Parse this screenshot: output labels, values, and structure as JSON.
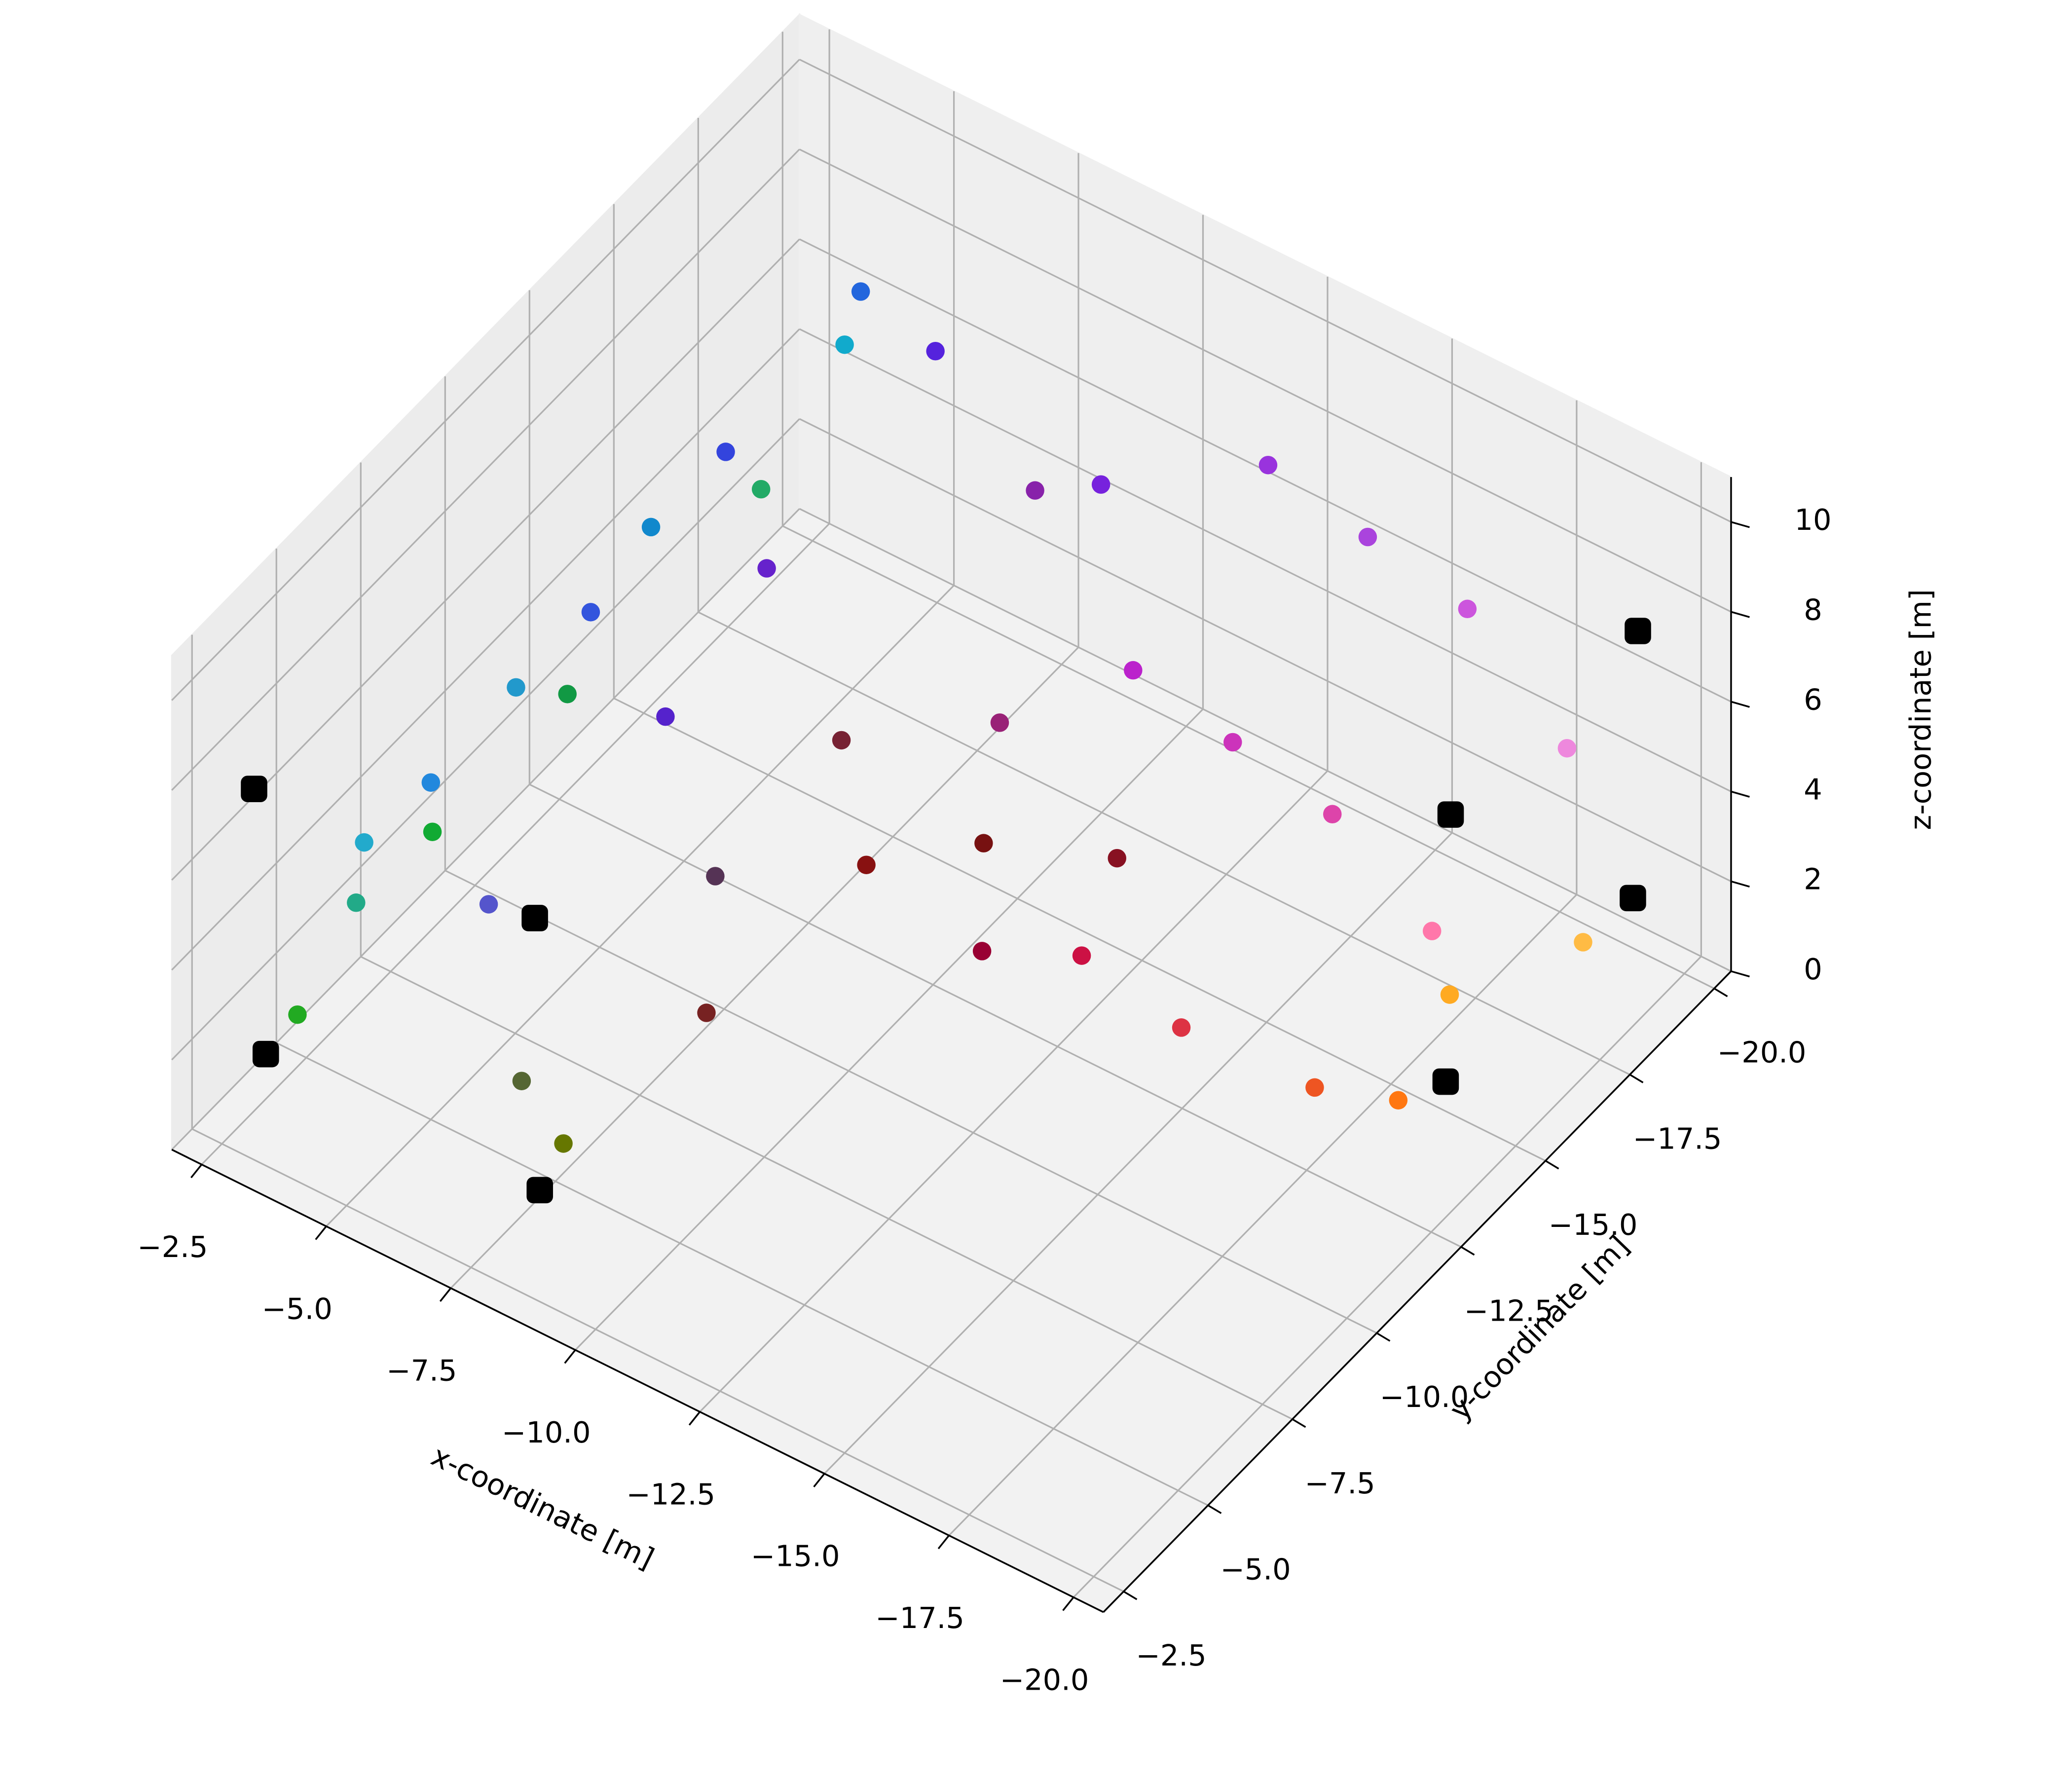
{
  "chart_data": {
    "type": "scatter3d",
    "xlabel": "x-coordinate [m]",
    "ylabel": "y-coordinate [m]",
    "zlabel": "z-coordinate [m]",
    "xlim": [
      -1.9,
      -20.6
    ],
    "ylim": [
      -1.9,
      -20.5
    ],
    "zlim": [
      0,
      11
    ],
    "xticks": [
      {
        "value": -2.5,
        "label": "−2.5"
      },
      {
        "value": -5,
        "label": "−5.0"
      },
      {
        "value": -7.5,
        "label": "−7.5"
      },
      {
        "value": -10,
        "label": "−10.0"
      },
      {
        "value": -12.5,
        "label": "−12.5"
      },
      {
        "value": -15,
        "label": "−15.0"
      },
      {
        "value": -17.5,
        "label": "−17.5"
      },
      {
        "value": -20,
        "label": "−20.0"
      }
    ],
    "yticks": [
      {
        "value": -2.5,
        "label": "−2.5"
      },
      {
        "value": -5,
        "label": "−5.0"
      },
      {
        "value": -7.5,
        "label": "−7.5"
      },
      {
        "value": -10,
        "label": "−10.0"
      },
      {
        "value": -12.5,
        "label": "−12.5"
      },
      {
        "value": -15,
        "label": "−15.0"
      },
      {
        "value": -17.5,
        "label": "−17.5"
      },
      {
        "value": -20,
        "label": "−20.0"
      }
    ],
    "zticks": [
      0,
      2,
      4,
      6,
      8,
      10
    ],
    "grid": true,
    "series": [
      {
        "marker": "circle",
        "x": [
          -3,
          -3.5,
          -4,
          -5,
          -6.5,
          -7.5,
          -8,
          -3,
          -4,
          -5.5,
          -7,
          -8,
          -8.5,
          -3,
          -4,
          -5.5,
          -7,
          -8.5,
          -9,
          -3.5,
          -4.5,
          -5.5,
          -7,
          -9,
          -11,
          -13,
          -15,
          -17,
          -19,
          -11,
          -13,
          -15,
          -17,
          -19,
          -12,
          -14,
          -16,
          -18,
          -19,
          -18,
          -20,
          -10,
          -12
        ],
        "y": [
          -4,
          -5,
          -4.5,
          -5,
          -4.5,
          -4,
          -4.5,
          -8,
          -9,
          -9,
          -9,
          -9,
          -8,
          -12,
          -13,
          -13,
          -12,
          -12,
          -12,
          -17,
          -18,
          -17,
          -17,
          -17,
          -16,
          -18,
          -18,
          -18,
          -18,
          -13,
          -14,
          -14,
          -14,
          -14,
          -11,
          -11,
          -11,
          -12,
          -13,
          -16,
          -17,
          -14,
          -15
        ],
        "z": [
          2,
          4,
          6,
          7.5,
          6,
          3,
          1.5,
          3,
          6,
          8.5,
          7,
          4,
          2,
          3,
          6.5,
          9,
          8,
          5,
          2.5,
          4,
          7,
          9.5,
          9,
          7,
          9,
          9,
          8.5,
          8,
          6,
          6,
          7.5,
          7,
          6.5,
          5,
          3,
          4,
          3.5,
          2.5,
          2,
          1.5,
          3,
          2,
          2
        ],
        "colors": [
          "#22aa22",
          "#22aa88",
          "#22aacc",
          "#2288dd",
          "#5555cc",
          "#556633",
          "#667700",
          "#11aa33",
          "#2299cc",
          "#3355dd",
          "#5522cc",
          "#553355",
          "#772222",
          "#119944",
          "#1188cc",
          "#3344dd",
          "#6622cc",
          "#772233",
          "#881111",
          "#22aa66",
          "#11aacc",
          "#2266dd",
          "#5522dd",
          "#8822aa",
          "#7722dd",
          "#9933dd",
          "#aa44dd",
          "#cc55dd",
          "#ee88dd",
          "#992277",
          "#bb22cc",
          "#cc33bb",
          "#dd44aa",
          "#ff77aa",
          "#990033",
          "#cc1144",
          "#dd3344",
          "#ee5522",
          "#ff7711",
          "#ffaa22",
          "#ffbb44",
          "#771111",
          "#881122"
        ]
      },
      {
        "marker": "square",
        "color": "#000000",
        "x": [
          -2.5,
          -8,
          -18.8,
          -18.9,
          -2.4,
          -7.9,
          -18.9,
          -19
        ],
        "y": [
          -3.8,
          -3.8,
          -14.7,
          -20.1,
          -3.6,
          -3.8,
          -14.7,
          -20.1
        ],
        "z": [
          1,
          1,
          1,
          1,
          7,
          7,
          7,
          7
        ]
      }
    ]
  }
}
